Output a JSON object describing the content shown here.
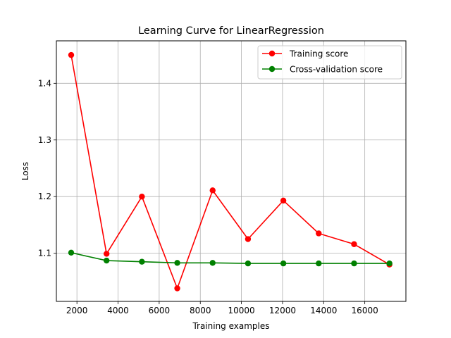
{
  "chart_data": {
    "type": "line",
    "title": "Learning Curve for LinearRegression",
    "xlabel": "Training examples",
    "ylabel": "Loss",
    "xlim": [
      1000,
      18000
    ],
    "ylim": [
      1.015,
      1.475
    ],
    "xticks": [
      2000,
      4000,
      6000,
      8000,
      10000,
      12000,
      14000,
      16000
    ],
    "yticks": [
      1.1,
      1.2,
      1.3,
      1.4
    ],
    "grid": true,
    "legend_position": "top-right",
    "x": [
      1720,
      3440,
      5160,
      6880,
      8600,
      10320,
      12040,
      13760,
      15480,
      17200
    ],
    "series": [
      {
        "name": "Training score",
        "color": "#ff0000",
        "marker": "circle",
        "values": [
          1.45,
          1.099,
          1.2,
          1.038,
          1.211,
          1.125,
          1.193,
          1.135,
          1.116,
          1.08
        ]
      },
      {
        "name": "Cross-validation score",
        "color": "#008000",
        "marker": "circle",
        "values": [
          1.101,
          1.087,
          1.085,
          1.083,
          1.083,
          1.082,
          1.082,
          1.082,
          1.082,
          1.082
        ]
      }
    ]
  }
}
